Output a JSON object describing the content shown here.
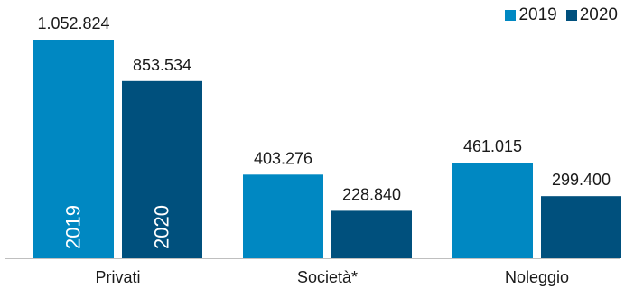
{
  "chart_data": {
    "type": "bar",
    "categories": [
      "Privati",
      "Società*",
      "Noleggio"
    ],
    "series": [
      {
        "name": "2019",
        "values": [
          1052824,
          403276,
          461015
        ],
        "labels": [
          "1.052.824",
          "403.276",
          "461.015"
        ],
        "color": "#0088c2"
      },
      {
        "name": "2020",
        "values": [
          853534,
          228840,
          299400
        ],
        "labels": [
          "853.534",
          "228.840",
          "299.400"
        ],
        "color": "#00507d"
      }
    ],
    "bar_inner_labels": {
      "category": "Privati",
      "texts": [
        "2019",
        "2020"
      ]
    },
    "ylim": [
      0,
      1100000
    ],
    "grid": false,
    "legend_position": "top-right",
    "title": "",
    "xlabel": "",
    "ylabel": ""
  }
}
